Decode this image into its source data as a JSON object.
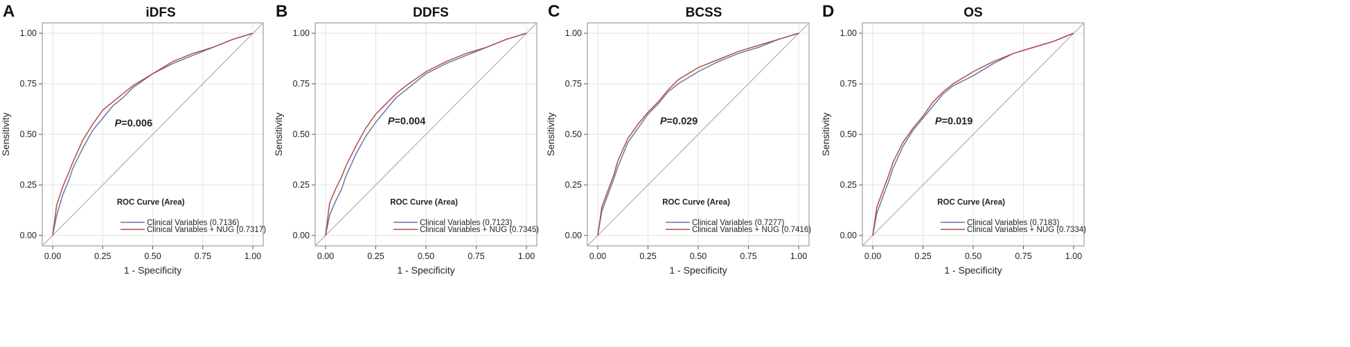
{
  "figure": {
    "legend_title": "ROC Curve (Area)",
    "p_prefix": "P",
    "ticks": [
      "0.00",
      "0.25",
      "0.50",
      "0.75",
      "1.00"
    ]
  },
  "colors": {
    "clinical": "#6874a6",
    "clinical_nug": "#b34a4a",
    "diagonal": "#b4b4b4",
    "grid": "#e3e3e3",
    "frame": "#888888"
  },
  "chart_data": [
    {
      "type": "line",
      "panel_letter": "A",
      "title": "iDFS",
      "xlabel": "1 - Specificity",
      "ylabel": "Sensitivity",
      "xlim": [
        0,
        1
      ],
      "ylim": [
        0,
        1
      ],
      "p_value": "=0.006",
      "p_pos": [
        0.31,
        0.54
      ],
      "series": [
        {
          "name": "Clinical Variables",
          "auc_text": "(0.7136)",
          "x": [
            0,
            0.02,
            0.05,
            0.08,
            0.1,
            0.15,
            0.2,
            0.25,
            0.3,
            0.35,
            0.4,
            0.5,
            0.6,
            0.7,
            0.8,
            0.9,
            1.0
          ],
          "y": [
            0,
            0.1,
            0.2,
            0.27,
            0.33,
            0.43,
            0.52,
            0.58,
            0.64,
            0.68,
            0.73,
            0.8,
            0.85,
            0.89,
            0.93,
            0.97,
            1.0
          ]
        },
        {
          "name": "Clinical Variables + NUG",
          "auc_text": "(0.7317)",
          "x": [
            0,
            0.02,
            0.05,
            0.08,
            0.1,
            0.15,
            0.2,
            0.25,
            0.3,
            0.35,
            0.4,
            0.5,
            0.6,
            0.7,
            0.8,
            0.9,
            1.0
          ],
          "y": [
            0,
            0.15,
            0.24,
            0.31,
            0.36,
            0.47,
            0.55,
            0.62,
            0.66,
            0.7,
            0.74,
            0.8,
            0.86,
            0.9,
            0.93,
            0.97,
            1.0
          ]
        }
      ]
    },
    {
      "type": "line",
      "panel_letter": "B",
      "title": "DDFS",
      "xlabel": "1 - Specificity",
      "ylabel": "Sensitivity",
      "xlim": [
        0,
        1
      ],
      "ylim": [
        0,
        1
      ],
      "p_value": "=0.004",
      "p_pos": [
        0.31,
        0.55
      ],
      "series": [
        {
          "name": "Clinical Variables",
          "auc_text": "(0.7123)",
          "x": [
            0,
            0.02,
            0.05,
            0.08,
            0.1,
            0.15,
            0.2,
            0.25,
            0.3,
            0.35,
            0.4,
            0.5,
            0.6,
            0.7,
            0.8,
            0.9,
            1.0
          ],
          "y": [
            0,
            0.1,
            0.17,
            0.23,
            0.29,
            0.4,
            0.49,
            0.56,
            0.62,
            0.68,
            0.72,
            0.8,
            0.85,
            0.89,
            0.93,
            0.97,
            1.0
          ]
        },
        {
          "name": "Clinical Variables + NUG",
          "auc_text": "(0.7345)",
          "x": [
            0,
            0.02,
            0.05,
            0.08,
            0.1,
            0.15,
            0.2,
            0.25,
            0.3,
            0.35,
            0.4,
            0.5,
            0.6,
            0.7,
            0.8,
            0.9,
            1.0
          ],
          "y": [
            0,
            0.16,
            0.23,
            0.29,
            0.34,
            0.44,
            0.53,
            0.6,
            0.65,
            0.7,
            0.74,
            0.81,
            0.86,
            0.9,
            0.93,
            0.97,
            1.0
          ]
        }
      ]
    },
    {
      "type": "line",
      "panel_letter": "C",
      "title": "BCSS",
      "xlabel": "1 - Specificity",
      "ylabel": "Sensitivity",
      "xlim": [
        0,
        1
      ],
      "ylim": [
        0,
        1
      ],
      "p_value": "=0.029",
      "p_pos": [
        0.31,
        0.55
      ],
      "series": [
        {
          "name": "Clinical Variables",
          "auc_text": "(0.7277)",
          "x": [
            0,
            0.02,
            0.05,
            0.08,
            0.1,
            0.15,
            0.2,
            0.25,
            0.3,
            0.35,
            0.4,
            0.5,
            0.6,
            0.7,
            0.8,
            0.9,
            1.0
          ],
          "y": [
            0,
            0.12,
            0.2,
            0.28,
            0.34,
            0.46,
            0.53,
            0.6,
            0.65,
            0.71,
            0.75,
            0.81,
            0.86,
            0.9,
            0.93,
            0.97,
            1.0
          ]
        },
        {
          "name": "Clinical Variables + NUG",
          "auc_text": "(0.7416)",
          "x": [
            0,
            0.02,
            0.05,
            0.08,
            0.1,
            0.15,
            0.2,
            0.25,
            0.3,
            0.35,
            0.4,
            0.5,
            0.6,
            0.7,
            0.8,
            0.9,
            1.0
          ],
          "y": [
            0,
            0.14,
            0.22,
            0.3,
            0.37,
            0.48,
            0.55,
            0.61,
            0.66,
            0.72,
            0.77,
            0.83,
            0.87,
            0.91,
            0.94,
            0.97,
            1.0
          ]
        }
      ]
    },
    {
      "type": "line",
      "panel_letter": "D",
      "title": "OS",
      "xlabel": "1 - Specificity",
      "ylabel": "Sensitivity",
      "xlim": [
        0,
        1
      ],
      "ylim": [
        0,
        1
      ],
      "p_value": "=0.019",
      "p_pos": [
        0.31,
        0.55
      ],
      "series": [
        {
          "name": "Clinical Variables",
          "auc_text": "(0.7183)",
          "x": [
            0,
            0.02,
            0.05,
            0.08,
            0.1,
            0.15,
            0.2,
            0.25,
            0.3,
            0.35,
            0.4,
            0.5,
            0.6,
            0.7,
            0.8,
            0.9,
            1.0
          ],
          "y": [
            0,
            0.11,
            0.19,
            0.27,
            0.33,
            0.44,
            0.52,
            0.58,
            0.64,
            0.7,
            0.74,
            0.79,
            0.85,
            0.9,
            0.93,
            0.96,
            1.0
          ]
        },
        {
          "name": "Clinical Variables + NUG",
          "auc_text": "(0.7334)",
          "x": [
            0,
            0.02,
            0.05,
            0.08,
            0.1,
            0.15,
            0.2,
            0.25,
            0.3,
            0.35,
            0.4,
            0.5,
            0.6,
            0.7,
            0.8,
            0.9,
            1.0
          ],
          "y": [
            0,
            0.14,
            0.22,
            0.3,
            0.36,
            0.46,
            0.53,
            0.59,
            0.66,
            0.71,
            0.75,
            0.81,
            0.86,
            0.9,
            0.93,
            0.96,
            1.0
          ]
        }
      ]
    }
  ]
}
